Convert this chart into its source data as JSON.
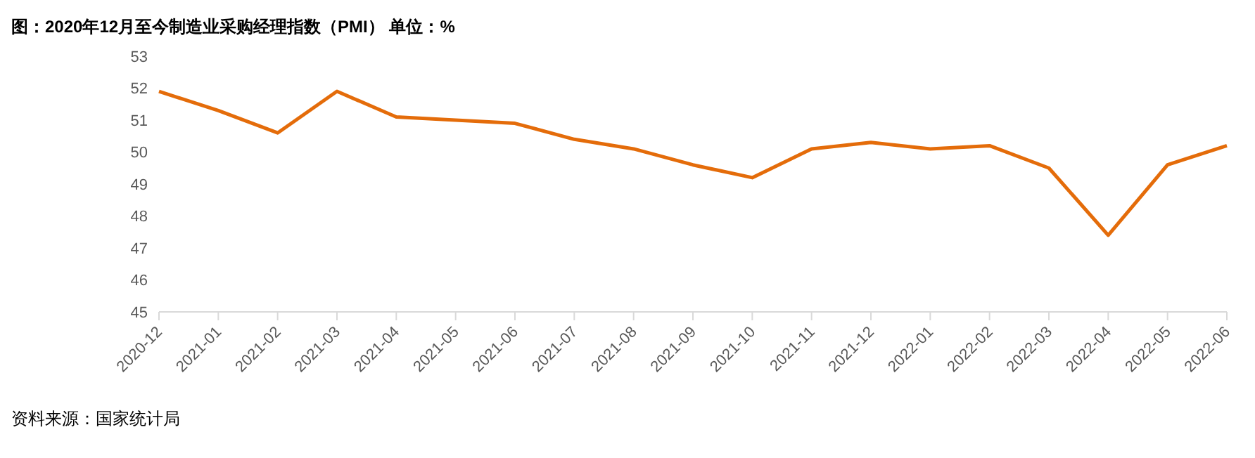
{
  "chart_data": {
    "type": "line",
    "title": "图：2020年12月至今制造业采购经理指数（PMI）  单位：%",
    "categories": [
      "2020-12",
      "2021-01",
      "2021-02",
      "2021-03",
      "2021-04",
      "2021-05",
      "2021-06",
      "2021-07",
      "2021-08",
      "2021-09",
      "2021-10",
      "2021-11",
      "2021-12",
      "2022-01",
      "2022-02",
      "2022-03",
      "2022-04",
      "2022-05",
      "2022-06"
    ],
    "series": [
      {
        "color": "#e46c0a",
        "values": [
          51.9,
          51.3,
          50.6,
          51.9,
          51.1,
          51.0,
          50.9,
          50.4,
          50.1,
          49.6,
          49.2,
          50.1,
          50.3,
          50.1,
          50.2,
          49.5,
          47.4,
          49.6,
          50.2
        ]
      }
    ],
    "ylim": [
      45,
      53
    ],
    "yticks": [
      45,
      46,
      47,
      48,
      49,
      50,
      51,
      52,
      53
    ],
    "grid": false,
    "legend": false,
    "marker": "none",
    "line_style": "solid",
    "annotations": [
      "资料来源：国家统计局"
    ]
  }
}
